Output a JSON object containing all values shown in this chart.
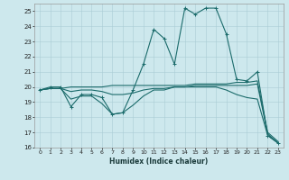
{
  "xlabel": "Humidex (Indice chaleur)",
  "xlim_min": -0.5,
  "xlim_max": 23.5,
  "ylim_min": 16,
  "ylim_max": 25.5,
  "yticks": [
    16,
    17,
    18,
    19,
    20,
    21,
    22,
    23,
    24,
    25
  ],
  "xticks": [
    0,
    1,
    2,
    3,
    4,
    5,
    6,
    7,
    8,
    9,
    10,
    11,
    12,
    13,
    14,
    15,
    16,
    17,
    18,
    19,
    20,
    21,
    22,
    23
  ],
  "bg_color": "#cde8ed",
  "grid_color": "#aacdd5",
  "line_color": "#1b6b6b",
  "curve_x": [
    0,
    1,
    2,
    3,
    4,
    5,
    6,
    7,
    8,
    9,
    10,
    11,
    12,
    13,
    14,
    15,
    16,
    17,
    18,
    19,
    20,
    21,
    22,
    23
  ],
  "curve_y": [
    19.8,
    20.0,
    20.0,
    18.7,
    19.5,
    19.5,
    19.3,
    18.2,
    18.3,
    19.8,
    21.5,
    23.8,
    23.2,
    21.5,
    25.2,
    24.8,
    25.2,
    25.2,
    23.5,
    20.5,
    20.4,
    21.0,
    16.8,
    16.3
  ],
  "line2_x": [
    0,
    1,
    2,
    3,
    4,
    5,
    6,
    7,
    8,
    9,
    10,
    11,
    12,
    13,
    14,
    15,
    16,
    17,
    18,
    19,
    20,
    21,
    22,
    23
  ],
  "line2_y": [
    19.8,
    19.9,
    19.9,
    20.0,
    20.0,
    20.0,
    20.0,
    20.1,
    20.1,
    20.1,
    20.1,
    20.1,
    20.1,
    20.1,
    20.1,
    20.2,
    20.2,
    20.2,
    20.2,
    20.3,
    20.3,
    20.4,
    17.0,
    16.4
  ],
  "line3_x": [
    0,
    1,
    2,
    3,
    4,
    5,
    6,
    7,
    8,
    9,
    10,
    11,
    12,
    13,
    14,
    15,
    16,
    17,
    18,
    19,
    20,
    21,
    22,
    23
  ],
  "line3_y": [
    19.8,
    19.9,
    19.9,
    19.7,
    19.8,
    19.8,
    19.7,
    19.5,
    19.5,
    19.6,
    19.8,
    19.9,
    19.9,
    20.0,
    20.0,
    20.1,
    20.1,
    20.1,
    20.1,
    20.1,
    20.1,
    20.2,
    16.9,
    16.3
  ],
  "line4_x": [
    0,
    1,
    2,
    3,
    4,
    5,
    6,
    7,
    8,
    9,
    10,
    11,
    12,
    13,
    14,
    15,
    16,
    17,
    18,
    19,
    20,
    21,
    22,
    23
  ],
  "line4_y": [
    19.8,
    19.9,
    19.9,
    19.2,
    19.4,
    19.4,
    18.9,
    18.2,
    18.3,
    18.8,
    19.4,
    19.8,
    19.8,
    20.0,
    20.0,
    20.0,
    20.0,
    20.0,
    19.8,
    19.5,
    19.3,
    19.2,
    16.8,
    16.3
  ]
}
